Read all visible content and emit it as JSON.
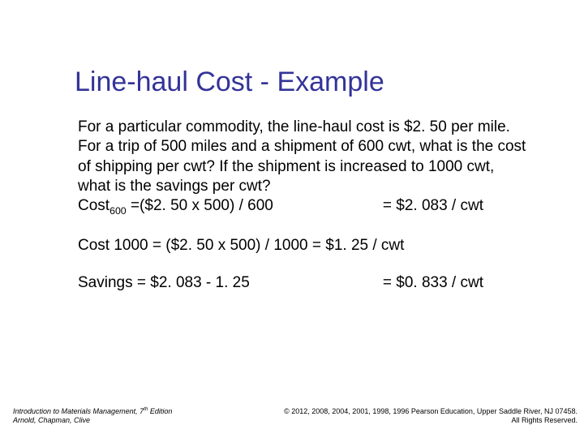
{
  "title": "Line-haul Cost - Example",
  "problem": "For a particular commodity, the line-haul cost is $2. 50 per mile. For a trip of 500 miles and a shipment of 600 cwt, what is the cost of shipping per cwt? If the shipment is increased to 1000 cwt, what is the savings per cwt?",
  "calc": {
    "row1_left_a": "Cost",
    "row1_left_sub": "600",
    "row1_left_b": " =($2. 50 x 500) / 600",
    "row1_right": "= $2. 083 / cwt",
    "row2_left": "Cost 1000 = ($2. 50 x 500) / 1000 = $1. 25 / cwt",
    "row3_left": "Savings = $2. 083 - 1. 25",
    "row3_right": "= $0. 833 / cwt"
  },
  "footer": {
    "book_a": "Introduction to Materials Management, 7",
    "book_sup": "th",
    "book_b": " Edition",
    "authors": "Arnold, Chapman, Clive",
    "copyright1": "© 2012, 2008, 2004, 2001, 1998, 1996 Pearson Education, Upper Saddle River, NJ 07458.",
    "copyright2": "All Rights Reserved."
  },
  "colors": {
    "title": "#333399",
    "text": "#000000",
    "background": "#ffffff"
  }
}
